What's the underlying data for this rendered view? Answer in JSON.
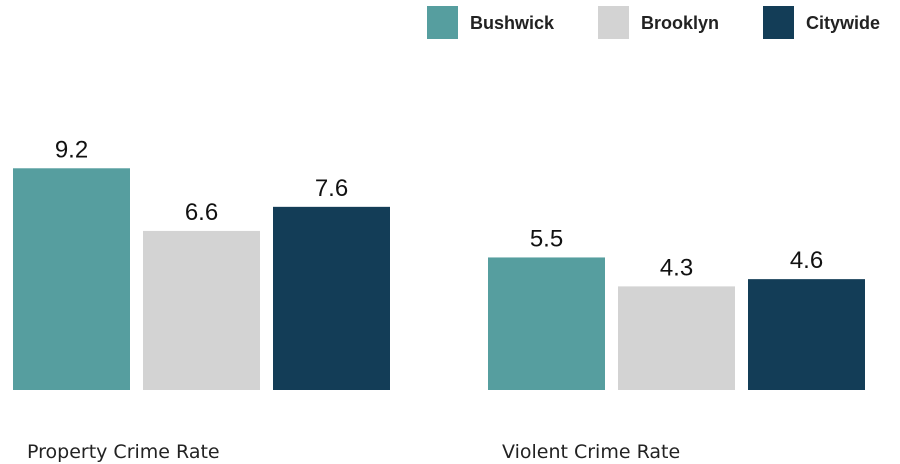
{
  "chart_data": {
    "type": "bar",
    "categories": [
      "Property Crime Rate",
      "Violent Crime Rate"
    ],
    "series": [
      {
        "name": "Bushwick",
        "color": "#569e9f",
        "values": [
          9.2,
          5.5
        ]
      },
      {
        "name": "Brooklyn",
        "color": "#d3d3d3",
        "values": [
          6.6,
          4.3
        ]
      },
      {
        "name": "Citywide",
        "color": "#133d57",
        "values": [
          7.6,
          4.6
        ]
      }
    ],
    "ylim": [
      0,
      10
    ],
    "grid": false,
    "legend": "top-right"
  }
}
